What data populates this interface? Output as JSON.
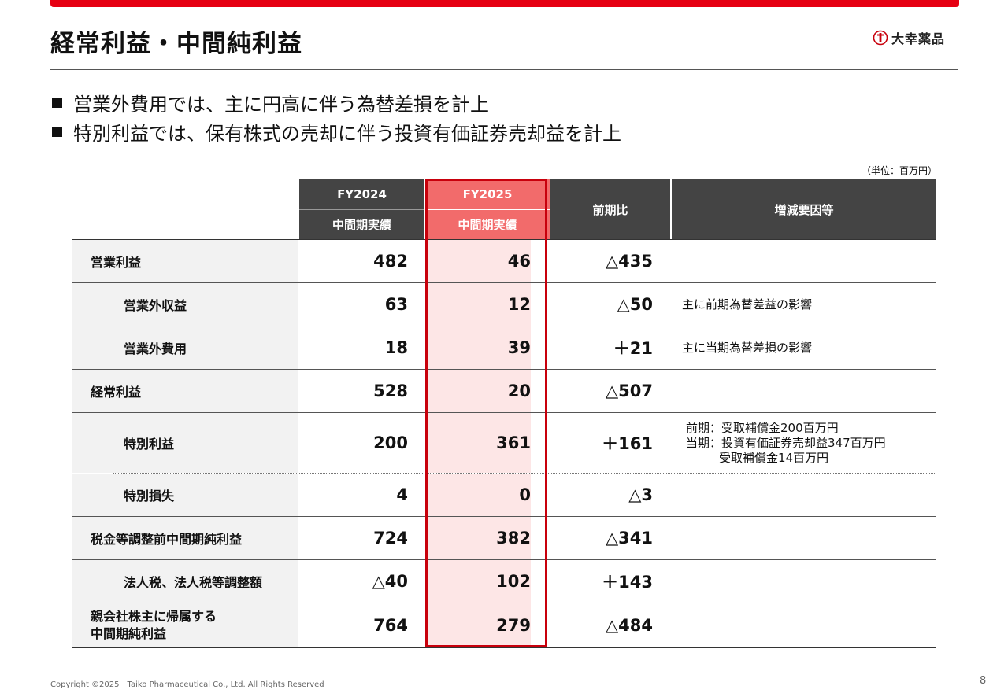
{
  "header": {
    "title": "経常利益・中間純利益",
    "logo_text": "大幸薬品",
    "brand_color": "#e60012"
  },
  "bullets": [
    "営業外費用では、主に円高に伴う為替差損を計上",
    "特別利益では、保有株式の売却に伴う投資有価証券売却益を計上"
  ],
  "unit": "（単位：百万円）",
  "table": {
    "columns": {
      "fy2024": "FY2024",
      "fy2024_sub": "中間期実績",
      "fy2025": "FY2025",
      "fy2025_sub": "中間期実績",
      "diff": "前期比",
      "reason": "増減要因等"
    },
    "rows": [
      {
        "label": "営業利益",
        "fy2024": "482",
        "fy2025": "46",
        "diff": "△435",
        "note": ""
      },
      {
        "label": "営業外収益",
        "fy2024": "63",
        "fy2025": "12",
        "diff": "△50",
        "note": "主に前期為替差益の影響"
      },
      {
        "label": "営業外費用",
        "fy2024": "18",
        "fy2025": "39",
        "diff": "＋21",
        "note": "主に当期為替差損の影響"
      },
      {
        "label": "経常利益",
        "fy2024": "528",
        "fy2025": "20",
        "diff": "△507",
        "note": ""
      },
      {
        "label": "特別利益",
        "fy2024": "200",
        "fy2025": "361",
        "diff": "＋161",
        "note": "前期：受取補償金200百万円",
        "note2": "当期：投資有価証券売却益347百万円",
        "note3": "受取補償金14百万円"
      },
      {
        "label": "特別損失",
        "fy2024": "4",
        "fy2025": "0",
        "diff": "△3",
        "note": ""
      },
      {
        "label": "税金等調整前中間期純利益",
        "fy2024": "724",
        "fy2025": "382",
        "diff": "△341",
        "note": ""
      },
      {
        "label": "法人税、法人税等調整額",
        "fy2024": "△40",
        "fy2025": "102",
        "diff": "＋143",
        "note": ""
      },
      {
        "label": "親会社株主に帰属する",
        "label2": "中間期純利益",
        "fy2024": "764",
        "fy2025": "279",
        "diff": "△484",
        "note": ""
      }
    ]
  },
  "footer": {
    "copyright": "Copyright ©2025　Taiko Pharmaceutical Co., Ltd. All Rights Reserved",
    "page": "8"
  }
}
